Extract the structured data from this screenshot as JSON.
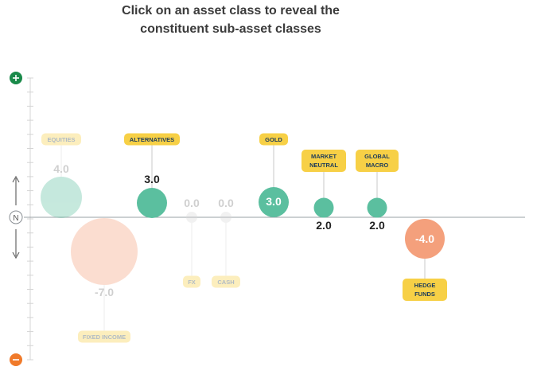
{
  "header": {
    "instruction_line1": "Click on an asset class to reveal the",
    "instruction_line2": "constituent sub-asset classes"
  },
  "scale": {
    "top_symbol": "+",
    "middle_symbol": "N",
    "bottom_symbol": "−",
    "top_color": "#1a8a4a",
    "bottom_color": "#f07a2a"
  },
  "colors": {
    "positive_bubble": "#5bbf9f",
    "negative_bubble": "#f4a07c",
    "neutral_bubble": "#d9d9d9",
    "label_bg": "#f7d046",
    "label_text": "#1d3b5a"
  },
  "chart_data": {
    "type": "bubble",
    "range": [
      -10,
      10
    ],
    "items": [
      {
        "name": "EQUITIES",
        "value": "4.0",
        "v": 4.0,
        "faded": true
      },
      {
        "name": "FIXED INCOME",
        "value": "-7.0",
        "v": -7.0,
        "faded": true
      },
      {
        "name": "ALTERNATIVES",
        "value": "3.0",
        "v": 3.0,
        "faded": false
      },
      {
        "name": "FX",
        "value": "0.0",
        "v": 0.0,
        "faded": true
      },
      {
        "name": "CASH",
        "value": "0.0",
        "v": 0.0,
        "faded": true
      },
      {
        "name": "GOLD",
        "value": "3.0",
        "v": 3.0,
        "faded": false
      },
      {
        "name": "MARKET NEUTRAL",
        "value": "2.0",
        "v": 2.0,
        "faded": false
      },
      {
        "name": "GLOBAL MACRO",
        "value": "2.0",
        "v": 2.0,
        "faded": false
      },
      {
        "name": "HEDGE FUNDS",
        "value": "-4.0",
        "v": -4.0,
        "faded": false
      }
    ]
  }
}
